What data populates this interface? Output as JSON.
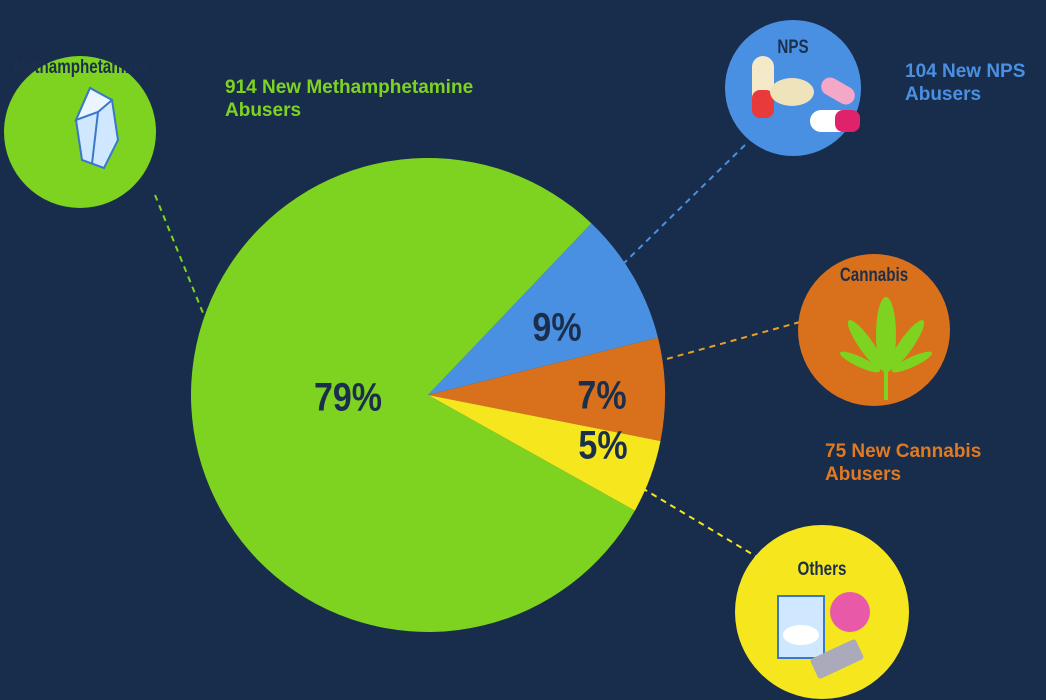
{
  "chart_data": {
    "type": "pie",
    "categories": [
      "Methamphetamine",
      "NPS",
      "Cannabis",
      "Others"
    ],
    "values": [
      79,
      9,
      7,
      5
    ],
    "value_labels": [
      "79%",
      "9%",
      "7%",
      "5%"
    ],
    "colors": [
      "#7ed321",
      "#4a90e2",
      "#d9711c",
      "#f5e61d"
    ],
    "descriptions": [
      "914 New Methamphetamine Abusers",
      "104 New NPS Abusers",
      "75 New Cannabis Abusers",
      null
    ]
  }
}
